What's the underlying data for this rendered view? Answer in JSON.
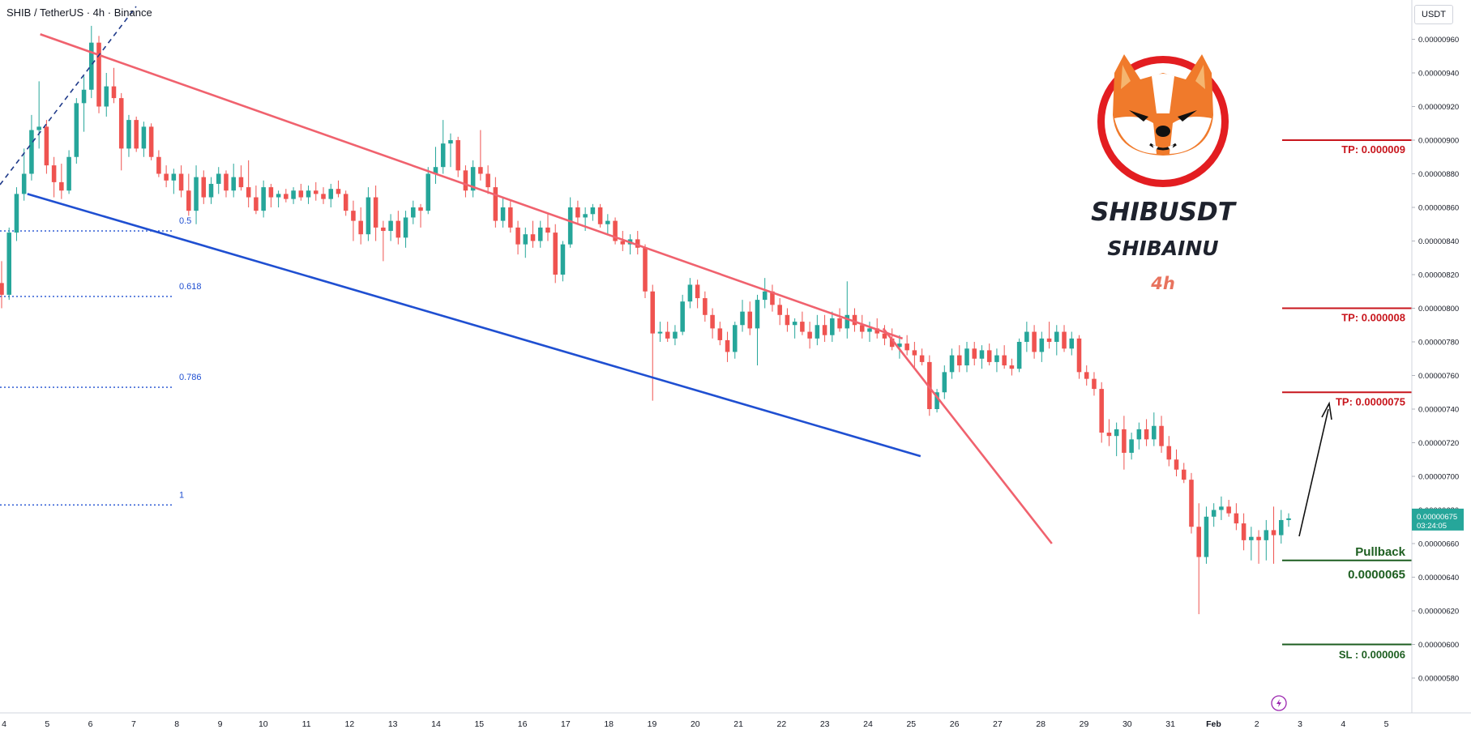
{
  "header": {
    "legend": "SHIB / TetherUS · 4h · Binance",
    "currency": "USDT"
  },
  "logo": {
    "title": "SHIBUSDT",
    "subtitle": "SHIBAINU",
    "timeframe": "4h"
  },
  "colors": {
    "up": "#26a69a",
    "down": "#ef5350",
    "resistance": "#f0626e",
    "support": "#1f4fd1",
    "tp": "#c8161d",
    "pullback": "#1d5e20",
    "fib": "#1f4fd1",
    "price_tag": "#26a69a"
  },
  "chart_data": {
    "type": "candlestick",
    "symbol": "SHIB / TetherUS",
    "timeframe": "4h",
    "exchange": "Binance",
    "y_axis": {
      "range": [
        5.7e-06,
        9.7e-06
      ],
      "ticks": [
        "0.00000960",
        "0.00000940",
        "0.00000920",
        "0.00000900",
        "0.00000880",
        "0.00000860",
        "0.00000840",
        "0.00000820",
        "0.00000800",
        "0.00000780",
        "0.00000760",
        "0.00000740",
        "0.00000720",
        "0.00000700",
        "0.00000680",
        "0.00000660",
        "0.00000640",
        "0.00000620",
        "0.00000600",
        "0.00000580"
      ]
    },
    "x_axis": {
      "ticks": [
        "4",
        "5",
        "6",
        "7",
        "8",
        "9",
        "10",
        "11",
        "12",
        "13",
        "14",
        "15",
        "16",
        "17",
        "18",
        "19",
        "20",
        "21",
        "22",
        "23",
        "24",
        "25",
        "26",
        "27",
        "28",
        "29",
        "30",
        "31",
        "Feb",
        "2",
        "3",
        "4",
        "5"
      ],
      "bold_ticks": [
        "Feb"
      ]
    },
    "current_price": {
      "value": "0.00000675",
      "countdown": "03:24:05"
    },
    "candles": [
      [
        8.15e-06,
        8.28e-06,
        8e-06,
        8.08e-06
      ],
      [
        8.08e-06,
        8.48e-06,
        8.05e-06,
        8.45e-06
      ],
      [
        8.45e-06,
        8.72e-06,
        8.4e-06,
        8.68e-06
      ],
      [
        8.68e-06,
        8.95e-06,
        8.64e-06,
        8.8e-06
      ],
      [
        8.8e-06,
        9.15e-06,
        8.76e-06,
        9.06e-06
      ],
      [
        9.06e-06,
        9.35e-06,
        8.95e-06,
        9.08e-06
      ],
      [
        9.08e-06,
        9.12e-06,
        8.8e-06,
        8.85e-06
      ],
      [
        8.85e-06,
        8.9e-06,
        8.66e-06,
        8.75e-06
      ],
      [
        8.75e-06,
        8.86e-06,
        8.65e-06,
        8.7e-06
      ],
      [
        8.7e-06,
        8.94e-06,
        8.68e-06,
        8.9e-06
      ],
      [
        8.9e-06,
        9.25e-06,
        8.86e-06,
        9.22e-06
      ],
      [
        9.22e-06,
        9.38e-06,
        9.05e-06,
        9.3e-06
      ],
      [
        9.3e-06,
        9.68e-06,
        9.25e-06,
        9.58e-06
      ],
      [
        9.58e-06,
        9.62e-06,
        9.16e-06,
        9.2e-06
      ],
      [
        9.2e-06,
        9.4e-06,
        9.14e-06,
        9.32e-06
      ],
      [
        9.32e-06,
        9.43e-06,
        9.22e-06,
        9.25e-06
      ],
      [
        9.25e-06,
        9.28e-06,
        8.82e-06,
        8.95e-06
      ],
      [
        8.95e-06,
        9.15e-06,
        8.9e-06,
        9.12e-06
      ],
      [
        9.12e-06,
        9.14e-06,
        8.93e-06,
        8.95e-06
      ],
      [
        8.95e-06,
        9.11e-06,
        8.9e-06,
        9.08e-06
      ],
      [
        9.08e-06,
        9.1e-06,
        8.88e-06,
        8.9e-06
      ],
      [
        8.9e-06,
        8.94e-06,
        8.78e-06,
        8.8e-06
      ],
      [
        8.8e-06,
        8.85e-06,
        8.72e-06,
        8.76e-06
      ],
      [
        8.76e-06,
        8.83e-06,
        8.68e-06,
        8.8e-06
      ],
      [
        8.8e-06,
        8.85e-06,
        8.66e-06,
        8.7e-06
      ],
      [
        8.7e-06,
        8.8e-06,
        8.55e-06,
        8.58e-06
      ],
      [
        8.58e-06,
        8.85e-06,
        8.5e-06,
        8.78e-06
      ],
      [
        8.78e-06,
        8.82e-06,
        8.62e-06,
        8.66e-06
      ],
      [
        8.66e-06,
        8.78e-06,
        8.62e-06,
        8.74e-06
      ],
      [
        8.74e-06,
        8.84e-06,
        8.68e-06,
        8.8e-06
      ],
      [
        8.8e-06,
        8.82e-06,
        8.66e-06,
        8.7e-06
      ],
      [
        8.7e-06,
        8.86e-06,
        8.66e-06,
        8.78e-06
      ],
      [
        8.78e-06,
        8.85e-06,
        8.7e-06,
        8.72e-06
      ],
      [
        8.72e-06,
        8.88e-06,
        8.6e-06,
        8.66e-06
      ],
      [
        8.66e-06,
        8.73e-06,
        8.56e-06,
        8.58e-06
      ],
      [
        8.58e-06,
        8.76e-06,
        8.54e-06,
        8.72e-06
      ],
      [
        8.72e-06,
        8.74e-06,
        8.6e-06,
        8.66e-06
      ],
      [
        8.66e-06,
        8.7e-06,
        8.6e-06,
        8.68e-06
      ],
      [
        8.68e-06,
        8.71e-06,
        8.63e-06,
        8.65e-06
      ],
      [
        8.65e-06,
        8.72e-06,
        8.62e-06,
        8.7e-06
      ],
      [
        8.7e-06,
        8.74e-06,
        8.64e-06,
        8.66e-06
      ],
      [
        8.66e-06,
        8.73e-06,
        8.62e-06,
        8.7e-06
      ],
      [
        8.7e-06,
        8.75e-06,
        8.64e-06,
        8.68e-06
      ],
      [
        8.68e-06,
        8.72e-06,
        8.62e-06,
        8.65e-06
      ],
      [
        8.65e-06,
        8.74e-06,
        8.6e-06,
        8.71e-06
      ],
      [
        8.71e-06,
        8.76e-06,
        8.66e-06,
        8.68e-06
      ],
      [
        8.68e-06,
        8.7e-06,
        8.55e-06,
        8.58e-06
      ],
      [
        8.58e-06,
        8.64e-06,
        8.4e-06,
        8.52e-06
      ],
      [
        8.52e-06,
        8.6e-06,
        8.38e-06,
        8.44e-06
      ],
      [
        8.44e-06,
        8.72e-06,
        8.4e-06,
        8.66e-06
      ],
      [
        8.66e-06,
        8.73e-06,
        8.4e-06,
        8.48e-06
      ],
      [
        8.48e-06,
        8.52e-06,
        8.28e-06,
        8.46e-06
      ],
      [
        8.46e-06,
        8.56e-06,
        8.4e-06,
        8.52e-06
      ],
      [
        8.52e-06,
        8.58e-06,
        8.38e-06,
        8.42e-06
      ],
      [
        8.42e-06,
        8.58e-06,
        8.36e-06,
        8.54e-06
      ],
      [
        8.54e-06,
        8.64e-06,
        8.5e-06,
        8.6e-06
      ],
      [
        8.6e-06,
        8.62e-06,
        8.48e-06,
        8.58e-06
      ],
      [
        8.58e-06,
        8.84e-06,
        8.56e-06,
        8.8e-06
      ],
      [
        8.8e-06,
        8.96e-06,
        8.74e-06,
        8.84e-06
      ],
      [
        8.84e-06,
        9.12e-06,
        8.8e-06,
        8.98e-06
      ],
      [
        8.98e-06,
        9.04e-06,
        8.84e-06,
        9e-06
      ],
      [
        9e-06,
        9.02e-06,
        8.78e-06,
        8.82e-06
      ],
      [
        8.82e-06,
        8.85e-06,
        8.66e-06,
        8.7e-06
      ],
      [
        8.7e-06,
        8.88e-06,
        8.66e-06,
        8.84e-06
      ],
      [
        8.84e-06,
        9.06e-06,
        8.76e-06,
        8.8e-06
      ],
      [
        8.8e-06,
        8.85e-06,
        8.68e-06,
        8.72e-06
      ],
      [
        8.72e-06,
        8.78e-06,
        8.48e-06,
        8.52e-06
      ],
      [
        8.52e-06,
        8.66e-06,
        8.48e-06,
        8.6e-06
      ],
      [
        8.6e-06,
        8.64e-06,
        8.45e-06,
        8.48e-06
      ],
      [
        8.48e-06,
        8.52e-06,
        8.32e-06,
        8.38e-06
      ],
      [
        8.38e-06,
        8.48e-06,
        8.3e-06,
        8.44e-06
      ],
      [
        8.44e-06,
        8.52e-06,
        8.36e-06,
        8.4e-06
      ],
      [
        8.4e-06,
        8.52e-06,
        8.36e-06,
        8.48e-06
      ],
      [
        8.48e-06,
        8.56e-06,
        8.4e-06,
        8.45e-06
      ],
      [
        8.45e-06,
        8.5e-06,
        8.15e-06,
        8.2e-06
      ],
      [
        8.2e-06,
        8.4e-06,
        8.16e-06,
        8.38e-06
      ],
      [
        8.38e-06,
        8.66e-06,
        8.36e-06,
        8.6e-06
      ],
      [
        8.6e-06,
        8.64e-06,
        8.5e-06,
        8.54e-06
      ],
      [
        8.54e-06,
        8.6e-06,
        8.46e-06,
        8.56e-06
      ],
      [
        8.56e-06,
        8.62e-06,
        8.52e-06,
        8.6e-06
      ],
      [
        8.6e-06,
        8.62e-06,
        8.48e-06,
        8.5e-06
      ],
      [
        8.5e-06,
        8.56e-06,
        8.44e-06,
        8.52e-06
      ],
      [
        8.52e-06,
        8.54e-06,
        8.38e-06,
        8.4e-06
      ],
      [
        8.4e-06,
        8.46e-06,
        8.34e-06,
        8.38e-06
      ],
      [
        8.38e-06,
        8.44e-06,
        8.32e-06,
        8.41e-06
      ],
      [
        8.41e-06,
        8.46e-06,
        8.32e-06,
        8.36e-06
      ],
      [
        8.36e-06,
        8.38e-06,
        8.06e-06,
        8.1e-06
      ],
      [
        8.1e-06,
        8.14e-06,
        7.45e-06,
        7.85e-06
      ],
      [
        7.85e-06,
        7.92e-06,
        7.8e-06,
        7.86e-06
      ],
      [
        7.86e-06,
        7.92e-06,
        7.8e-06,
        7.82e-06
      ],
      [
        7.82e-06,
        7.9e-06,
        7.78e-06,
        7.86e-06
      ],
      [
        7.86e-06,
        8.08e-06,
        7.84e-06,
        8.04e-06
      ],
      [
        8.04e-06,
        8.18e-06,
        8e-06,
        8.14e-06
      ],
      [
        8.14e-06,
        8.17e-06,
        8e-06,
        8.06e-06
      ],
      [
        8.06e-06,
        8.1e-06,
        7.92e-06,
        7.96e-06
      ],
      [
        7.96e-06,
        8e-06,
        7.82e-06,
        7.88e-06
      ],
      [
        7.88e-06,
        7.92e-06,
        7.78e-06,
        7.81e-06
      ],
      [
        7.81e-06,
        7.86e-06,
        7.68e-06,
        7.74e-06
      ],
      [
        7.74e-06,
        7.92e-06,
        7.7e-06,
        7.9e-06
      ],
      [
        7.9e-06,
        8.05e-06,
        7.86e-06,
        7.98e-06
      ],
      [
        7.98e-06,
        8.04e-06,
        7.84e-06,
        7.88e-06
      ],
      [
        7.88e-06,
        8.08e-06,
        7.66e-06,
        8.05e-06
      ],
      [
        8.05e-06,
        8.18e-06,
        8e-06,
        8.1e-06
      ],
      [
        8.1e-06,
        8.14e-06,
        7.98e-06,
        8.02e-06
      ],
      [
        8.02e-06,
        8.06e-06,
        7.9e-06,
        7.96e-06
      ],
      [
        7.96e-06,
        8e-06,
        7.86e-06,
        7.9e-06
      ],
      [
        7.9e-06,
        7.94e-06,
        7.82e-06,
        7.92e-06
      ],
      [
        7.92e-06,
        7.98e-06,
        7.84e-06,
        7.86e-06
      ],
      [
        7.86e-06,
        7.92e-06,
        7.76e-06,
        7.82e-06
      ],
      [
        7.82e-06,
        7.96e-06,
        7.78e-06,
        7.9e-06
      ],
      [
        7.9e-06,
        7.96e-06,
        7.8e-06,
        7.84e-06
      ],
      [
        7.84e-06,
        7.98e-06,
        7.8e-06,
        7.94e-06
      ],
      [
        7.94e-06,
        8e-06,
        7.86e-06,
        7.88e-06
      ],
      [
        7.88e-06,
        8.16e-06,
        7.82e-06,
        7.96e-06
      ],
      [
        7.96e-06,
        8e-06,
        7.86e-06,
        7.9e-06
      ],
      [
        7.9e-06,
        7.96e-06,
        7.82e-06,
        7.86e-06
      ],
      [
        7.86e-06,
        7.92e-06,
        7.8e-06,
        7.88e-06
      ],
      [
        7.88e-06,
        7.94e-06,
        7.82e-06,
        7.85e-06
      ],
      [
        7.85e-06,
        7.9e-06,
        7.78e-06,
        7.82e-06
      ],
      [
        7.82e-06,
        7.88e-06,
        7.75e-06,
        7.77e-06
      ],
      [
        7.77e-06,
        7.84e-06,
        7.7e-06,
        7.79e-06
      ],
      [
        7.79e-06,
        7.84e-06,
        7.72e-06,
        7.75e-06
      ],
      [
        7.75e-06,
        7.8e-06,
        7.64e-06,
        7.72e-06
      ],
      [
        7.72e-06,
        7.76e-06,
        7.66e-06,
        7.68e-06
      ],
      [
        7.68e-06,
        7.72e-06,
        7.36e-06,
        7.4e-06
      ],
      [
        7.4e-06,
        7.52e-06,
        7.38e-06,
        7.5e-06
      ],
      [
        7.5e-06,
        7.66e-06,
        7.46e-06,
        7.62e-06
      ],
      [
        7.62e-06,
        7.76e-06,
        7.58e-06,
        7.72e-06
      ],
      [
        7.72e-06,
        7.78e-06,
        7.62e-06,
        7.66e-06
      ],
      [
        7.66e-06,
        7.8e-06,
        7.62e-06,
        7.76e-06
      ],
      [
        7.76e-06,
        7.8e-06,
        7.66e-06,
        7.7e-06
      ],
      [
        7.7e-06,
        7.78e-06,
        7.64e-06,
        7.75e-06
      ],
      [
        7.75e-06,
        7.79e-06,
        7.66e-06,
        7.68e-06
      ],
      [
        7.68e-06,
        7.76e-06,
        7.62e-06,
        7.72e-06
      ],
      [
        7.72e-06,
        7.78e-06,
        7.64e-06,
        7.66e-06
      ],
      [
        7.66e-06,
        7.7e-06,
        7.6e-06,
        7.64e-06
      ],
      [
        7.64e-06,
        7.82e-06,
        7.62e-06,
        7.8e-06
      ],
      [
        7.8e-06,
        7.92e-06,
        7.74e-06,
        7.86e-06
      ],
      [
        7.86e-06,
        7.9e-06,
        7.7e-06,
        7.74e-06
      ],
      [
        7.74e-06,
        7.86e-06,
        7.68e-06,
        7.82e-06
      ],
      [
        7.82e-06,
        7.92e-06,
        7.76e-06,
        7.8e-06
      ],
      [
        7.8e-06,
        7.9e-06,
        7.72e-06,
        7.86e-06
      ],
      [
        7.86e-06,
        7.9e-06,
        7.74e-06,
        7.76e-06
      ],
      [
        7.76e-06,
        7.86e-06,
        7.72e-06,
        7.82e-06
      ],
      [
        7.82e-06,
        7.84e-06,
        7.58e-06,
        7.62e-06
      ],
      [
        7.62e-06,
        7.66e-06,
        7.54e-06,
        7.58e-06
      ],
      [
        7.58e-06,
        7.62e-06,
        7.48e-06,
        7.52e-06
      ],
      [
        7.52e-06,
        7.56e-06,
        7.2e-06,
        7.26e-06
      ],
      [
        7.26e-06,
        7.34e-06,
        7.18e-06,
        7.24e-06
      ],
      [
        7.24e-06,
        7.32e-06,
        7.12e-06,
        7.28e-06
      ],
      [
        7.28e-06,
        7.36e-06,
        7.04e-06,
        7.14e-06
      ],
      [
        7.14e-06,
        7.26e-06,
        7.1e-06,
        7.22e-06
      ],
      [
        7.22e-06,
        7.32e-06,
        7.16e-06,
        7.28e-06
      ],
      [
        7.28e-06,
        7.34e-06,
        7.18e-06,
        7.22e-06
      ],
      [
        7.22e-06,
        7.38e-06,
        7.18e-06,
        7.3e-06
      ],
      [
        7.3e-06,
        7.36e-06,
        7.14e-06,
        7.18e-06
      ],
      [
        7.18e-06,
        7.24e-06,
        7.06e-06,
        7.1e-06
      ],
      [
        7.1e-06,
        7.16e-06,
        7e-06,
        7.04e-06
      ],
      [
        7.04e-06,
        7.08e-06,
        6.96e-06,
        6.98e-06
      ],
      [
        6.98e-06,
        7.02e-06,
        6.66e-06,
        6.7e-06
      ],
      [
        6.7e-06,
        6.84e-06,
        6.18e-06,
        6.52e-06
      ],
      [
        6.52e-06,
        6.82e-06,
        6.48e-06,
        6.76e-06
      ],
      [
        6.76e-06,
        6.84e-06,
        6.7e-06,
        6.8e-06
      ],
      [
        6.8e-06,
        6.88e-06,
        6.74e-06,
        6.82e-06
      ],
      [
        6.82e-06,
        6.86e-06,
        6.76e-06,
        6.78e-06
      ],
      [
        6.78e-06,
        6.84e-06,
        6.68e-06,
        6.72e-06
      ],
      [
        6.72e-06,
        6.78e-06,
        6.56e-06,
        6.62e-06
      ],
      [
        6.62e-06,
        6.7e-06,
        6.5e-06,
        6.64e-06
      ],
      [
        6.64e-06,
        6.68e-06,
        6.48e-06,
        6.62e-06
      ],
      [
        6.62e-06,
        6.74e-06,
        6.5e-06,
        6.68e-06
      ],
      [
        6.68e-06,
        6.82e-06,
        6.48e-06,
        6.65e-06
      ],
      [
        6.65e-06,
        6.8e-06,
        6.6e-06,
        6.74e-06
      ],
      [
        6.74e-06,
        6.78e-06,
        6.7e-06,
        6.75e-06
      ]
    ],
    "trendlines": [
      {
        "name": "resistance",
        "from": [
          0.03,
          9.63e-06
        ],
        "to": [
          0.7,
          7.82e-06
        ]
      },
      {
        "name": "resistance-steep",
        "from": [
          0.685,
          7.88e-06
        ],
        "to": [
          0.816,
          6.6e-06
        ]
      },
      {
        "name": "support",
        "from": [
          0.02,
          8.68e-06
        ],
        "to": [
          0.714,
          7.12e-06
        ]
      }
    ],
    "fib_levels": [
      {
        "label": "0.5",
        "price": 8.46e-06
      },
      {
        "label": "0.618",
        "price": 8.07e-06
      },
      {
        "label": "0.786",
        "price": 7.53e-06
      },
      {
        "label": "1",
        "price": 6.83e-06
      }
    ],
    "levels": [
      {
        "label": "TP: 0.000009",
        "price": 9e-06,
        "kind": "tp"
      },
      {
        "label": "TP: 0.000008",
        "price": 8e-06,
        "kind": "tp"
      },
      {
        "label": "TP: 0.0000075",
        "price": 7.5e-06,
        "kind": "tp"
      },
      {
        "label": "Pullback",
        "price": 6.5e-06,
        "kind": "pullback",
        "value_label": "0.0000065"
      },
      {
        "label": "SL : 0.000006",
        "price": 6e-06,
        "kind": "sl"
      }
    ],
    "grid": false,
    "legend_position": "top-left"
  }
}
